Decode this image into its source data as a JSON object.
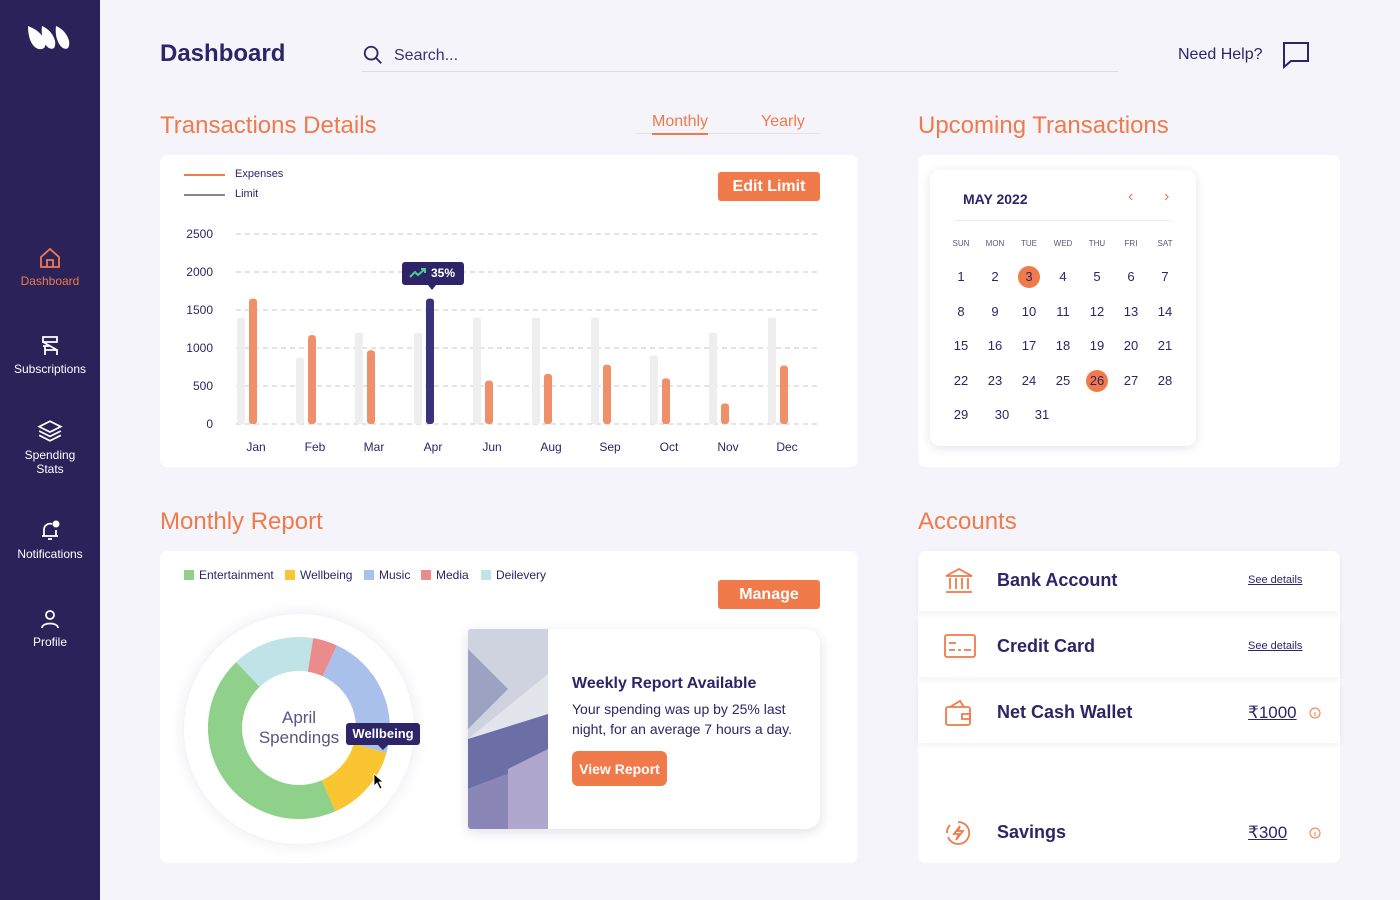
{
  "sidebar": {
    "items": [
      {
        "label": "Dashboard",
        "icon": "home-icon"
      },
      {
        "label": "Subscriptions",
        "icon": "subscriptions-icon"
      },
      {
        "label": "Spending",
        "label2": "Stats",
        "icon": "layers-icon"
      },
      {
        "label": "Notifications",
        "icon": "bell-icon"
      },
      {
        "label": "Profile",
        "icon": "user-icon"
      }
    ]
  },
  "header": {
    "title": "Dashboard",
    "search_placeholder": "Search...",
    "help_label": "Need Help?"
  },
  "transactions": {
    "title": "Transactions Details",
    "tabs": [
      "Monthly",
      "Yearly"
    ],
    "active_tab": "Monthly",
    "edit_limit_label": "Edit Limit",
    "tooltip": "35%"
  },
  "chart_data": {
    "type": "bar",
    "categories": [
      "Jan",
      "Feb",
      "Mar",
      "Apr",
      "Jun",
      "Aug",
      "Sep",
      "Oct",
      "Nov",
      "Dec"
    ],
    "series": [
      {
        "name": "Expenses",
        "values": [
          1650,
          1170,
          970,
          1650,
          570,
          660,
          780,
          600,
          270,
          770
        ],
        "color": "#f0906a"
      },
      {
        "name": "Limit",
        "values": [
          1400,
          870,
          1200,
          1200,
          1400,
          1400,
          1400,
          900,
          1200,
          1400
        ],
        "color": "#eeeeee"
      }
    ],
    "highlight": {
      "category": "Apr",
      "color": "#3a327a"
    },
    "yticks": [
      0,
      500,
      1000,
      1500,
      2000,
      2500
    ],
    "ylim": [
      0,
      2500
    ],
    "legend_colors": {
      "Expenses": "#f07a4a",
      "Limit": "#888888"
    }
  },
  "upcoming": {
    "title": "Upcoming Transactions",
    "month": "MAY 2022",
    "prev_glyph": "‹",
    "next_glyph": "›",
    "weekdays": [
      "SUN",
      "MON",
      "TUE",
      "WED",
      "THU",
      "FRI",
      "SAT"
    ],
    "weeks": [
      [
        "1",
        "2",
        "3",
        "4",
        "5",
        "6",
        "7"
      ],
      [
        "8",
        "9",
        "10",
        "11",
        "12",
        "13",
        "14"
      ],
      [
        "15",
        "16",
        "17",
        "18",
        "19",
        "20",
        "21"
      ],
      [
        "22",
        "23",
        "24",
        "25",
        "26",
        "27",
        "28"
      ],
      [
        "29",
        "30",
        "31"
      ]
    ],
    "selected_days": [
      "3",
      "26"
    ]
  },
  "monthly_report": {
    "title": "Monthly Report",
    "legend": [
      {
        "label": "Entertainment",
        "color": "#8fd18a"
      },
      {
        "label": "Wellbeing",
        "color": "#f9c531"
      },
      {
        "label": "Music",
        "color": "#a9c1ea"
      },
      {
        "label": "Media",
        "color": "#ec8b8b"
      },
      {
        "label": "Deilevery",
        "color": "#bfe3e6"
      }
    ],
    "manage_label": "Manage",
    "donut_line1": "April",
    "donut_line2": "Spendings",
    "donut_tooltip": "Wellbeing",
    "weekly_title": "Weekly Report Available",
    "weekly_text": "Your spending was up by 25% last night, for an average 7 hours a day.",
    "view_report_label": "View Report"
  },
  "accounts": {
    "title": "Accounts",
    "items": [
      {
        "name": "Bank Account",
        "action": "See details",
        "icon": "bank-icon"
      },
      {
        "name": "Credit Card",
        "action": "See details",
        "icon": "credit-card-icon"
      },
      {
        "name": "Net Cash Wallet",
        "value": "₹1000",
        "icon": "wallet-icon"
      },
      {
        "name": "Savings",
        "value": "₹300",
        "icon": "savings-icon"
      }
    ],
    "accent": "#f07a4a"
  }
}
